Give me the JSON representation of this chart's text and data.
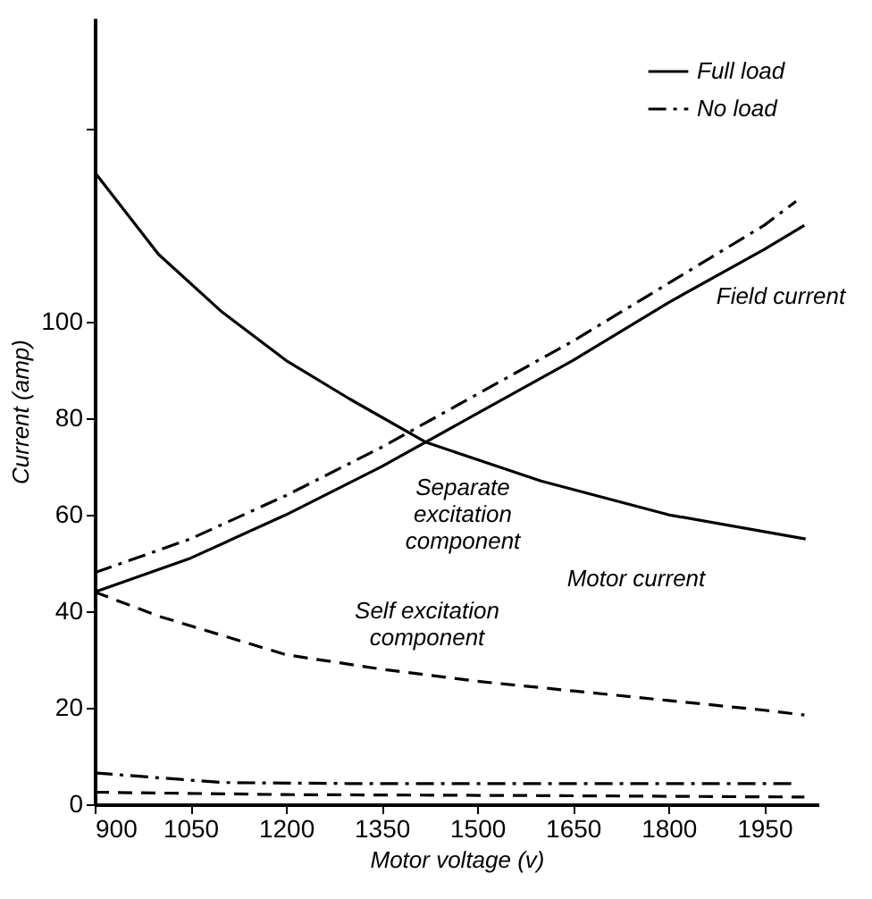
{
  "chart_data": {
    "type": "line",
    "xlabel": "Motor voltage (v)",
    "ylabel": "Current (amp)",
    "xlim": [
      900,
      2035
    ],
    "xticks": [
      900,
      1050,
      1200,
      1350,
      1500,
      1650,
      1800,
      1950
    ],
    "ylim": [
      0,
      163
    ],
    "yticks": [
      0,
      20,
      40,
      60,
      80,
      100,
      {
        "value": 140,
        "label": null
      }
    ],
    "grid": false,
    "legend": "top right",
    "series": [
      {
        "color": "#000000",
        "line_style": "solid",
        "x": [
          900,
          1000,
          1100,
          1200,
          1300,
          1420,
          1600,
          1800,
          2015
        ],
        "values": [
          131,
          114,
          102,
          92,
          84,
          75,
          67,
          60,
          55
        ]
      },
      {
        "name": "Full load",
        "color": "#000000",
        "line_style": "solid",
        "x": [
          900,
          1050,
          1200,
          1350,
          1500,
          1650,
          1800,
          1950,
          2013
        ],
        "values": [
          44,
          51,
          60,
          70,
          81,
          92,
          104,
          115,
          120
        ]
      },
      {
        "name": "No load",
        "color": "#000000",
        "line_style": "dashdot",
        "x": [
          900,
          1050,
          1200,
          1350,
          1500,
          1650,
          1800,
          1950,
          2000
        ],
        "values": [
          48,
          55,
          64,
          74,
          85,
          96,
          108,
          120,
          125
        ]
      },
      {
        "color": "#000000",
        "line_style": "dashed",
        "x": [
          900,
          1000,
          1100,
          1200,
          1350,
          1500,
          1650,
          1800,
          1950,
          2013
        ],
        "values": [
          44,
          39,
          35,
          31,
          28,
          25.5,
          23.5,
          21.5,
          19.5,
          18.5
        ]
      },
      {
        "color": "#000000",
        "line_style": "dashdot",
        "x": [
          900,
          1000,
          1100,
          1300,
          1600,
          2000
        ],
        "values": [
          6.5,
          5.5,
          4.5,
          4.3,
          4.3,
          4.3
        ]
      },
      {
        "color": "#000000",
        "line_style": "dashed",
        "x": [
          900,
          1200,
          1600,
          2013
        ],
        "values": [
          2.5,
          2,
          1.8,
          1.5
        ]
      }
    ],
    "annotations": [
      "Field current",
      "Separate\nexcitation\ncomponent",
      "Self excitation\ncomponent",
      "Motor current"
    ]
  }
}
